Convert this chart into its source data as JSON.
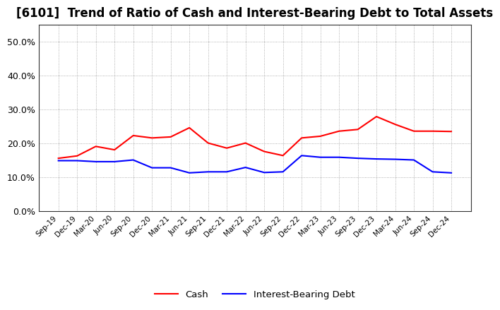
{
  "title": "[6101]  Trend of Ratio of Cash and Interest-Bearing Debt to Total Assets",
  "x_labels": [
    "Sep-19",
    "Dec-19",
    "Mar-20",
    "Jun-20",
    "Sep-20",
    "Dec-20",
    "Mar-21",
    "Jun-21",
    "Sep-21",
    "Dec-21",
    "Mar-22",
    "Jun-22",
    "Sep-22",
    "Dec-22",
    "Mar-23",
    "Jun-23",
    "Sep-23",
    "Dec-23",
    "Mar-24",
    "Jun-24",
    "Sep-24",
    "Dec-24"
  ],
  "cash": [
    0.155,
    0.162,
    0.19,
    0.18,
    0.222,
    0.215,
    0.218,
    0.245,
    0.2,
    0.185,
    0.2,
    0.175,
    0.163,
    0.215,
    0.22,
    0.235,
    0.24,
    0.278,
    0.255,
    0.235,
    0.235,
    0.234
  ],
  "ibd": [
    0.148,
    0.148,
    0.145,
    0.145,
    0.15,
    0.127,
    0.127,
    0.112,
    0.115,
    0.115,
    0.128,
    0.113,
    0.115,
    0.163,
    0.158,
    0.158,
    0.155,
    0.153,
    0.152,
    0.15,
    0.115,
    0.112
  ],
  "cash_color": "#ff0000",
  "ibd_color": "#0000ff",
  "ylim": [
    0.0,
    0.55
  ],
  "yticks": [
    0.0,
    0.1,
    0.2,
    0.3,
    0.4,
    0.5
  ],
  "background_color": "#ffffff",
  "grid_color": "#999999",
  "title_fontsize": 12,
  "legend_cash": "Cash",
  "legend_ibd": "Interest-Bearing Debt"
}
